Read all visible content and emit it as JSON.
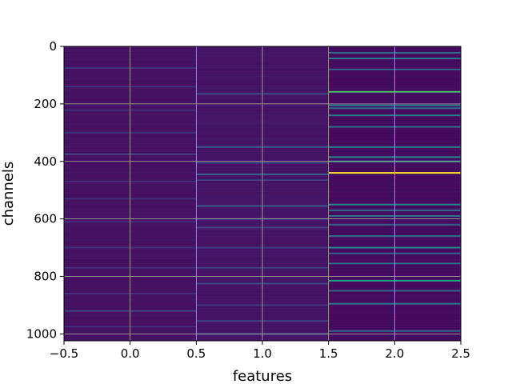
{
  "chart_data": {
    "type": "heatmap",
    "title": "",
    "xlabel": "features",
    "ylabel": "channels",
    "xlim": [
      -0.5,
      2.5
    ],
    "ylim": [
      1024,
      0
    ],
    "y_inverted": true,
    "grid": true,
    "colormap": "viridis",
    "n_rows": 1024,
    "n_cols": 3,
    "background_color": "#440154",
    "xticks": [
      -0.5,
      0.0,
      0.5,
      1.0,
      1.5,
      2.0,
      2.5
    ],
    "xtick_labels": [
      "−0.5",
      "0.0",
      "0.5",
      "1.0",
      "1.5",
      "2.0",
      "2.5"
    ],
    "yticks": [
      0,
      200,
      400,
      600,
      800,
      1000
    ],
    "ytick_labels": [
      "0",
      "200",
      "400",
      "600",
      "800",
      "1000"
    ],
    "columns": [
      {
        "feature": 0,
        "baseline": 0.06,
        "highlights": [
          {
            "channel": 75,
            "value": 0.16
          },
          {
            "channel": 140,
            "value": 0.15
          },
          {
            "channel": 222,
            "value": 0.14
          },
          {
            "channel": 300,
            "value": 0.15
          },
          {
            "channel": 375,
            "value": 0.2
          },
          {
            "channel": 470,
            "value": 0.14
          },
          {
            "channel": 530,
            "value": 0.15
          },
          {
            "channel": 610,
            "value": 0.14
          },
          {
            "channel": 700,
            "value": 0.15
          },
          {
            "channel": 770,
            "value": 0.14
          },
          {
            "channel": 860,
            "value": 0.15
          },
          {
            "channel": 920,
            "value": 0.2
          },
          {
            "channel": 975,
            "value": 0.14
          }
        ]
      },
      {
        "feature": 1,
        "baseline": 0.07,
        "highlights": [
          {
            "channel": 165,
            "value": 0.22
          },
          {
            "channel": 350,
            "value": 0.25
          },
          {
            "channel": 405,
            "value": 0.22
          },
          {
            "channel": 445,
            "value": 0.3
          },
          {
            "channel": 465,
            "value": 0.2
          },
          {
            "channel": 555,
            "value": 0.28
          },
          {
            "channel": 600,
            "value": 0.18
          },
          {
            "channel": 630,
            "value": 0.2
          },
          {
            "channel": 700,
            "value": 0.18
          },
          {
            "channel": 770,
            "value": 0.2
          },
          {
            "channel": 825,
            "value": 0.22
          },
          {
            "channel": 900,
            "value": 0.18
          },
          {
            "channel": 955,
            "value": 0.2
          },
          {
            "channel": 1000,
            "value": 0.22
          }
        ]
      },
      {
        "feature": 2,
        "baseline": 0.04,
        "highlights": [
          {
            "channel": 22,
            "value": 0.35
          },
          {
            "channel": 42,
            "value": 0.4
          },
          {
            "channel": 80,
            "value": 0.3
          },
          {
            "channel": 158,
            "value": 0.7
          },
          {
            "channel": 205,
            "value": 0.4
          },
          {
            "channel": 215,
            "value": 0.35
          },
          {
            "channel": 240,
            "value": 0.38
          },
          {
            "channel": 280,
            "value": 0.35
          },
          {
            "channel": 350,
            "value": 0.4
          },
          {
            "channel": 385,
            "value": 0.45
          },
          {
            "channel": 400,
            "value": 0.5
          },
          {
            "channel": 440,
            "value": 1.0
          },
          {
            "channel": 550,
            "value": 0.45
          },
          {
            "channel": 570,
            "value": 0.35
          },
          {
            "channel": 590,
            "value": 0.38
          },
          {
            "channel": 620,
            "value": 0.3
          },
          {
            "channel": 660,
            "value": 0.35
          },
          {
            "channel": 700,
            "value": 0.45
          },
          {
            "channel": 720,
            "value": 0.3
          },
          {
            "channel": 755,
            "value": 0.35
          },
          {
            "channel": 815,
            "value": 0.55
          },
          {
            "channel": 850,
            "value": 0.3
          },
          {
            "channel": 895,
            "value": 0.38
          },
          {
            "channel": 990,
            "value": 0.3
          }
        ]
      }
    ]
  }
}
